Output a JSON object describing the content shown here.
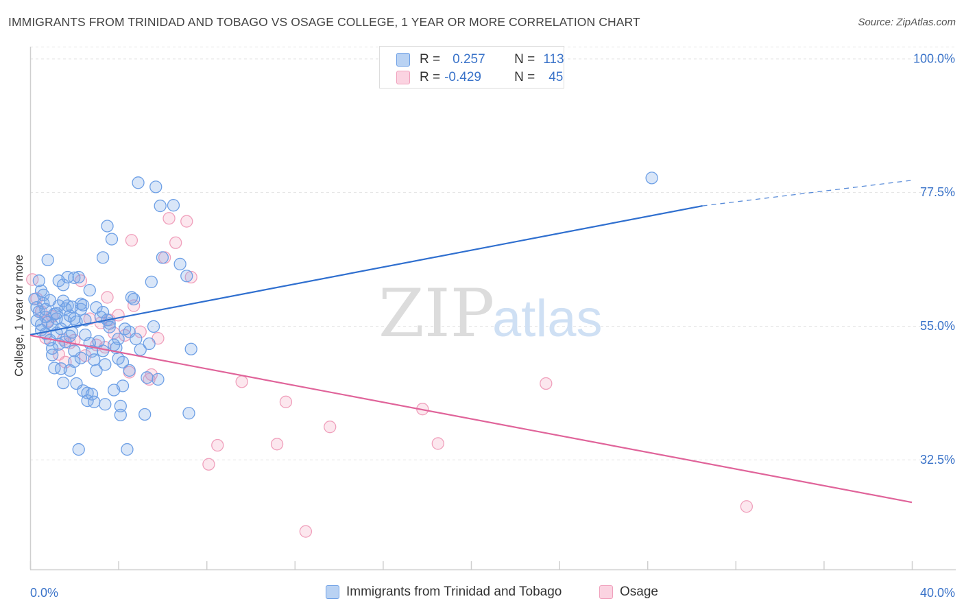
{
  "title": "IMMIGRANTS FROM TRINIDAD AND TOBAGO VS OSAGE COLLEGE, 1 YEAR OR MORE CORRELATION CHART",
  "source": "Source: ZipAtlas.com",
  "watermark": {
    "zip": "ZIP",
    "atlas": "atlas"
  },
  "colors": {
    "blue": "#6ea0e6",
    "blue_line": "#2f6fcf",
    "pink": "#f0a0bc",
    "pink_line": "#e0649a",
    "tick_text": "#3a73c9"
  },
  "legend": {
    "rows": [
      {
        "r_label": "R =",
        "r_value": "0.257",
        "n_label": "N =",
        "n_value": "113"
      },
      {
        "r_label": "R =",
        "r_value": "-0.429",
        "n_label": "N =",
        "n_value": "45"
      }
    ]
  },
  "chart_data": {
    "type": "scatter",
    "title": "IMMIGRANTS FROM TRINIDAD AND TOBAGO VS OSAGE COLLEGE, 1 YEAR OR MORE CORRELATION CHART",
    "xlabel": "",
    "ylabel": "College, 1 year or more",
    "xlim": [
      0,
      40
    ],
    "ylim": [
      14,
      102
    ],
    "x_tick_labels": [
      "0.0%",
      "40.0%"
    ],
    "y_ticks": [
      32.5,
      55.0,
      77.5,
      100.0
    ],
    "y_tick_labels": [
      "32.5%",
      "55.0%",
      "77.5%",
      "100.0%"
    ],
    "grid": "horizontal dashed",
    "legend_position": "top-center",
    "series": [
      {
        "name": "Immigrants from Trinidad and Tobago",
        "color": "#6ea0e6",
        "trend": {
          "x": [
            0,
            30.5
          ],
          "y": [
            53.5,
            75.2
          ],
          "dashed_to": [
            40,
            79.5
          ]
        },
        "points": [
          [
            0.2,
            59.5
          ],
          [
            0.3,
            58.1
          ],
          [
            0.4,
            62.6
          ],
          [
            0.4,
            57.4
          ],
          [
            0.5,
            60.9
          ],
          [
            0.5,
            55.2
          ],
          [
            0.6,
            58.8
          ],
          [
            0.7,
            56.5
          ],
          [
            0.7,
            53.7
          ],
          [
            0.8,
            66.1
          ],
          [
            0.8,
            55.6
          ],
          [
            0.9,
            52.6
          ],
          [
            1.0,
            51.2
          ],
          [
            1.0,
            50.1
          ],
          [
            1.1,
            57.0
          ],
          [
            1.1,
            47.9
          ],
          [
            1.2,
            56.2
          ],
          [
            1.2,
            53.8
          ],
          [
            1.3,
            62.6
          ],
          [
            1.3,
            58.4
          ],
          [
            1.4,
            54.5
          ],
          [
            1.4,
            47.8
          ],
          [
            1.5,
            61.9
          ],
          [
            1.5,
            59.2
          ],
          [
            1.5,
            45.4
          ],
          [
            1.6,
            57.9
          ],
          [
            1.6,
            55.8
          ],
          [
            1.7,
            63.2
          ],
          [
            1.7,
            58.4
          ],
          [
            1.8,
            56.7
          ],
          [
            1.8,
            53.3
          ],
          [
            1.8,
            47.5
          ],
          [
            1.9,
            58.2
          ],
          [
            2.0,
            63.1
          ],
          [
            2.0,
            56.2
          ],
          [
            2.0,
            50.8
          ],
          [
            2.1,
            55.7
          ],
          [
            2.1,
            45.3
          ],
          [
            2.2,
            34.2
          ],
          [
            2.2,
            63.2
          ],
          [
            2.3,
            57.8
          ],
          [
            2.3,
            49.6
          ],
          [
            2.4,
            44.1
          ],
          [
            2.5,
            56.0
          ],
          [
            2.5,
            53.5
          ],
          [
            2.6,
            43.7
          ],
          [
            2.6,
            42.4
          ],
          [
            2.7,
            61.0
          ],
          [
            2.8,
            50.7
          ],
          [
            2.8,
            43.5
          ],
          [
            2.9,
            42.2
          ],
          [
            3.0,
            58.1
          ],
          [
            3.1,
            52.4
          ],
          [
            3.2,
            56.5
          ],
          [
            3.3,
            66.5
          ],
          [
            3.3,
            57.3
          ],
          [
            3.4,
            48.5
          ],
          [
            3.4,
            41.8
          ],
          [
            3.5,
            71.8
          ],
          [
            3.5,
            56.0
          ],
          [
            3.6,
            55.4
          ],
          [
            3.7,
            69.6
          ],
          [
            3.8,
            51.8
          ],
          [
            3.9,
            51.3
          ],
          [
            4.0,
            52.8
          ],
          [
            4.0,
            49.5
          ],
          [
            4.1,
            41.5
          ],
          [
            4.1,
            40.0
          ],
          [
            4.2,
            48.9
          ],
          [
            4.3,
            54.5
          ],
          [
            4.5,
            54.0
          ],
          [
            4.5,
            47.5
          ],
          [
            4.6,
            59.8
          ],
          [
            4.7,
            59.5
          ],
          [
            4.8,
            52.8
          ],
          [
            4.9,
            79.1
          ],
          [
            5.0,
            51.0
          ],
          [
            5.2,
            40.1
          ],
          [
            5.3,
            46.3
          ],
          [
            5.4,
            52.0
          ],
          [
            5.5,
            62.4
          ],
          [
            5.6,
            54.9
          ],
          [
            5.7,
            78.4
          ],
          [
            5.9,
            75.2
          ],
          [
            6.0,
            66.5
          ],
          [
            6.5,
            75.3
          ],
          [
            6.8,
            65.4
          ],
          [
            7.1,
            63.4
          ],
          [
            7.2,
            40.3
          ],
          [
            7.3,
            51.1
          ],
          [
            28.2,
            79.9
          ],
          [
            0.6,
            60.2
          ],
          [
            0.9,
            59.3
          ],
          [
            1.2,
            57.1
          ],
          [
            1.6,
            52.3
          ],
          [
            2.3,
            58.7
          ],
          [
            2.7,
            52.1
          ],
          [
            3.0,
            47.5
          ],
          [
            3.6,
            54.8
          ],
          [
            4.2,
            44.9
          ],
          [
            0.3,
            55.9
          ],
          [
            0.5,
            54.3
          ],
          [
            0.7,
            57.8
          ],
          [
            1.0,
            55.1
          ],
          [
            1.9,
            53.9
          ],
          [
            2.4,
            58.5
          ],
          [
            2.9,
            49.3
          ],
          [
            3.3,
            50.8
          ],
          [
            3.8,
            44.2
          ],
          [
            4.4,
            34.2
          ],
          [
            5.8,
            46.0
          ],
          [
            1.3,
            51.9
          ],
          [
            2.0,
            49.0
          ]
        ]
      },
      {
        "name": "Osage",
        "color": "#f0a0bc",
        "trend": {
          "x": [
            0,
            40
          ],
          "y": [
            53.4,
            25.3
          ]
        },
        "points": [
          [
            0.1,
            62.8
          ],
          [
            0.3,
            59.6
          ],
          [
            0.5,
            57.4
          ],
          [
            0.7,
            53.0
          ],
          [
            0.8,
            55.8
          ],
          [
            1.0,
            56.6
          ],
          [
            1.3,
            50.2
          ],
          [
            1.5,
            52.7
          ],
          [
            1.6,
            48.9
          ],
          [
            1.8,
            52.1
          ],
          [
            2.0,
            52.6
          ],
          [
            2.3,
            62.6
          ],
          [
            2.5,
            50.0
          ],
          [
            2.7,
            56.2
          ],
          [
            3.0,
            51.8
          ],
          [
            3.2,
            55.5
          ],
          [
            3.4,
            51.4
          ],
          [
            3.5,
            59.8
          ],
          [
            3.6,
            56.0
          ],
          [
            3.8,
            53.8
          ],
          [
            4.0,
            56.8
          ],
          [
            4.3,
            53.4
          ],
          [
            4.5,
            47.2
          ],
          [
            4.6,
            69.4
          ],
          [
            4.7,
            58.4
          ],
          [
            5.0,
            54.0
          ],
          [
            5.4,
            46.0
          ],
          [
            5.5,
            46.8
          ],
          [
            5.8,
            52.9
          ],
          [
            6.1,
            66.5
          ],
          [
            6.3,
            73.1
          ],
          [
            6.6,
            69.0
          ],
          [
            7.1,
            72.6
          ],
          [
            7.3,
            63.2
          ],
          [
            8.1,
            31.7
          ],
          [
            8.5,
            34.9
          ],
          [
            9.6,
            45.6
          ],
          [
            11.2,
            35.1
          ],
          [
            11.6,
            42.2
          ],
          [
            12.5,
            20.4
          ],
          [
            13.6,
            38.0
          ],
          [
            17.8,
            41.0
          ],
          [
            18.5,
            35.2
          ],
          [
            23.4,
            45.3
          ],
          [
            32.5,
            24.6
          ]
        ]
      }
    ]
  },
  "bottom_legend": [
    {
      "label": "Immigrants from Trinidad and Tobago"
    },
    {
      "label": "Osage"
    }
  ]
}
